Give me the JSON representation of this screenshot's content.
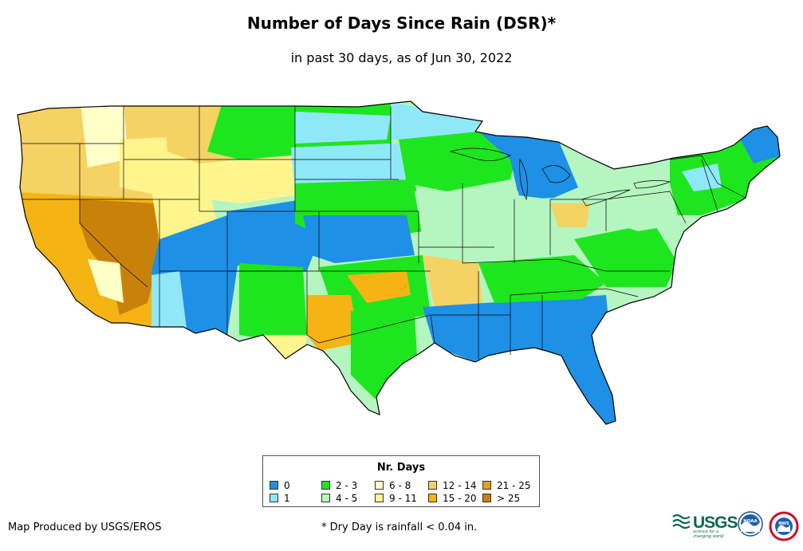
{
  "title": "Number of Days Since Rain (DSR)*",
  "subtitle": "in past 30 days, as of Jun 30, 2022",
  "legend": {
    "title": "Nr. Days",
    "items": [
      {
        "label": "0",
        "color": "#1e90e6"
      },
      {
        "label": "1",
        "color": "#8fe8f8"
      },
      {
        "label": "2 - 3",
        "color": "#1ee61e"
      },
      {
        "label": "4 - 5",
        "color": "#b4f5c0"
      },
      {
        "label": "6 - 8",
        "color": "#ffffc8"
      },
      {
        "label": "9 - 11",
        "color": "#fff58c"
      },
      {
        "label": "12 - 14",
        "color": "#f5d264"
      },
      {
        "label": "15 - 20",
        "color": "#f5b414"
      },
      {
        "label": "21 - 25",
        "color": "#e6a01e"
      },
      {
        "label": "> 25",
        "color": "#c8820a"
      }
    ]
  },
  "credit": "Map Produced by USGS/EROS",
  "footnote": "* Dry Day is rainfall < 0.04 in.",
  "logos": {
    "usgs": "USGS",
    "usgs_tagline": "science for a changing world",
    "noaa": "NOAA",
    "nws": "NWS"
  }
}
